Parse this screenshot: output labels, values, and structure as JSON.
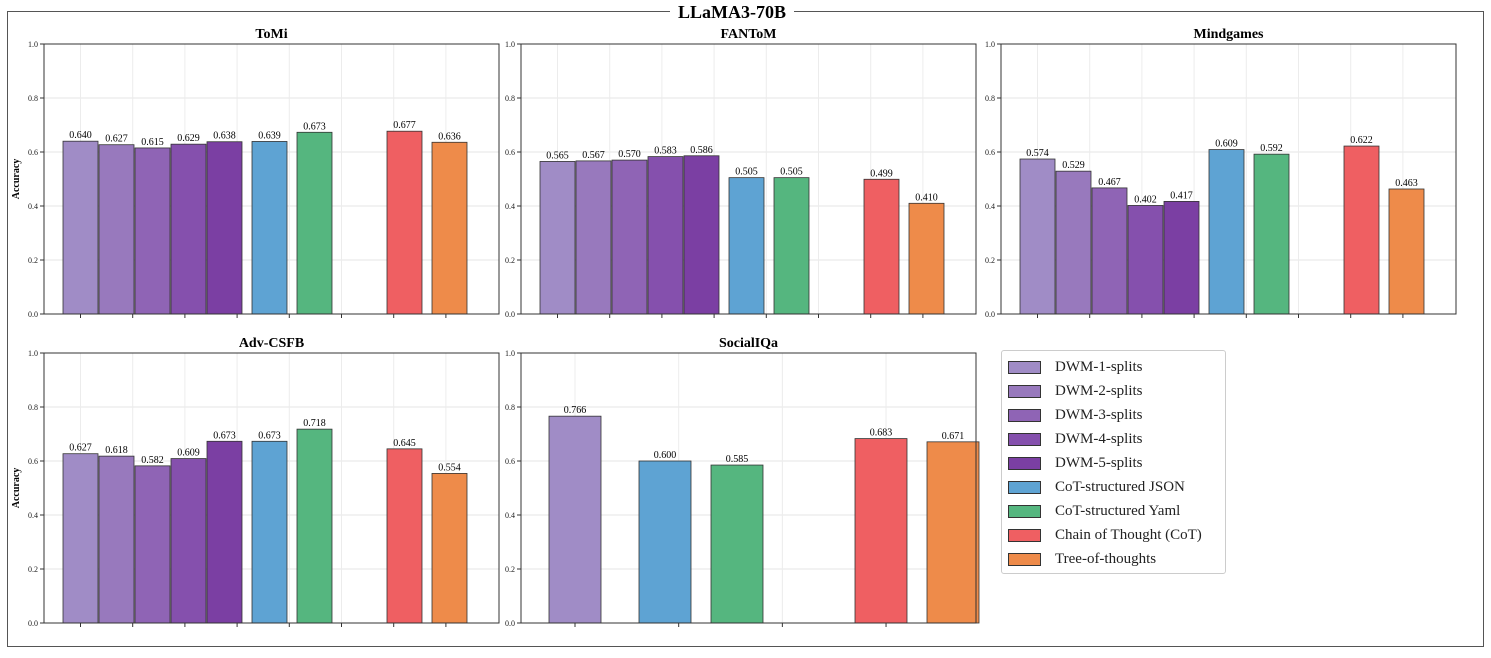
{
  "main_title": "LLaMA3-70B",
  "colors": {
    "DWM-1-splits": "#a08cc6",
    "DWM-2-splits": "#9879bd",
    "DWM-3-splits": "#8f64b5",
    "DWM-4-splits": "#8550ad",
    "DWM-5-splits": "#7b3fa3",
    "CoT-structured JSON": "#5ea3d3",
    "CoT-structured Yaml": "#55b67f",
    "Chain of Thought (CoT)": "#ef5f62",
    "Tree-of-thoughts": "#ee8b4a"
  },
  "legend": {
    "items": [
      "DWM-1-splits",
      "DWM-2-splits",
      "DWM-3-splits",
      "DWM-4-splits",
      "DWM-5-splits",
      "CoT-structured JSON",
      "CoT-structured Yaml",
      "Chain of Thought (CoT)",
      "Tree-of-thoughts"
    ]
  },
  "chart_data": [
    {
      "type": "bar",
      "title": "ToMi",
      "ylabel": "Accuracy",
      "xlabel": "",
      "ylim": [
        0,
        1
      ],
      "yticks": [
        "0.0",
        "0.2",
        "0.4",
        "0.6",
        "0.8",
        "1.0"
      ],
      "grid": true,
      "series": [
        {
          "name": "DWM-1-splits",
          "value": 0.64,
          "label": "0.640"
        },
        {
          "name": "DWM-2-splits",
          "value": 0.627,
          "label": "0.627"
        },
        {
          "name": "DWM-3-splits",
          "value": 0.615,
          "label": "0.615"
        },
        {
          "name": "DWM-4-splits",
          "value": 0.629,
          "label": "0.629"
        },
        {
          "name": "DWM-5-splits",
          "value": 0.638,
          "label": "0.638"
        },
        {
          "name": "CoT-structured JSON",
          "value": 0.639,
          "label": "0.639"
        },
        {
          "name": "CoT-structured Yaml",
          "value": 0.673,
          "label": "0.673"
        },
        {
          "name": "Chain of Thought (CoT)",
          "value": 0.677,
          "label": "0.677"
        },
        {
          "name": "Tree-of-thoughts",
          "value": 0.636,
          "label": "0.636"
        }
      ]
    },
    {
      "type": "bar",
      "title": "FANToM",
      "ylabel": "",
      "xlabel": "",
      "ylim": [
        0,
        1
      ],
      "yticks": [
        "0.0",
        "0.2",
        "0.4",
        "0.6",
        "0.8",
        "1.0"
      ],
      "grid": true,
      "series": [
        {
          "name": "DWM-1-splits",
          "value": 0.565,
          "label": "0.565"
        },
        {
          "name": "DWM-2-splits",
          "value": 0.567,
          "label": "0.567"
        },
        {
          "name": "DWM-3-splits",
          "value": 0.57,
          "label": "0.570"
        },
        {
          "name": "DWM-4-splits",
          "value": 0.583,
          "label": "0.583"
        },
        {
          "name": "DWM-5-splits",
          "value": 0.586,
          "label": "0.586"
        },
        {
          "name": "CoT-structured JSON",
          "value": 0.505,
          "label": "0.505"
        },
        {
          "name": "CoT-structured Yaml",
          "value": 0.505,
          "label": "0.505"
        },
        {
          "name": "Chain of Thought (CoT)",
          "value": 0.499,
          "label": "0.499"
        },
        {
          "name": "Tree-of-thoughts",
          "value": 0.41,
          "label": "0.410"
        }
      ]
    },
    {
      "type": "bar",
      "title": "Mindgames",
      "ylabel": "",
      "xlabel": "",
      "ylim": [
        0,
        1
      ],
      "yticks": [
        "0.0",
        "0.2",
        "0.4",
        "0.6",
        "0.8",
        "1.0"
      ],
      "grid": true,
      "series": [
        {
          "name": "DWM-1-splits",
          "value": 0.574,
          "label": "0.574"
        },
        {
          "name": "DWM-2-splits",
          "value": 0.529,
          "label": "0.529"
        },
        {
          "name": "DWM-3-splits",
          "value": 0.467,
          "label": "0.467"
        },
        {
          "name": "DWM-4-splits",
          "value": 0.402,
          "label": "0.402"
        },
        {
          "name": "DWM-5-splits",
          "value": 0.417,
          "label": "0.417"
        },
        {
          "name": "CoT-structured JSON",
          "value": 0.609,
          "label": "0.609"
        },
        {
          "name": "CoT-structured Yaml",
          "value": 0.592,
          "label": "0.592"
        },
        {
          "name": "Chain of Thought (CoT)",
          "value": 0.622,
          "label": "0.622"
        },
        {
          "name": "Tree-of-thoughts",
          "value": 0.463,
          "label": "0.463"
        }
      ]
    },
    {
      "type": "bar",
      "title": "Adv-CSFB",
      "ylabel": "Accuracy",
      "xlabel": "",
      "ylim": [
        0,
        1
      ],
      "yticks": [
        "0.0",
        "0.2",
        "0.4",
        "0.6",
        "0.8",
        "1.0"
      ],
      "grid": true,
      "series": [
        {
          "name": "DWM-1-splits",
          "value": 0.627,
          "label": "0.627"
        },
        {
          "name": "DWM-2-splits",
          "value": 0.618,
          "label": "0.618"
        },
        {
          "name": "DWM-3-splits",
          "value": 0.582,
          "label": "0.582"
        },
        {
          "name": "DWM-4-splits",
          "value": 0.609,
          "label": "0.609"
        },
        {
          "name": "DWM-5-splits",
          "value": 0.673,
          "label": "0.673"
        },
        {
          "name": "CoT-structured JSON",
          "value": 0.673,
          "label": "0.673"
        },
        {
          "name": "CoT-structured Yaml",
          "value": 0.718,
          "label": "0.718"
        },
        {
          "name": "Chain of Thought (CoT)",
          "value": 0.645,
          "label": "0.645"
        },
        {
          "name": "Tree-of-thoughts",
          "value": 0.554,
          "label": "0.554"
        }
      ]
    },
    {
      "type": "bar",
      "title": "SocialIQa",
      "ylabel": "",
      "xlabel": "",
      "ylim": [
        0,
        1
      ],
      "yticks": [
        "0.0",
        "0.2",
        "0.4",
        "0.6",
        "0.8",
        "1.0"
      ],
      "grid": true,
      "series": [
        {
          "name": "DWM-1-splits",
          "value": 0.766,
          "label": "0.766"
        },
        {
          "name": "CoT-structured JSON",
          "value": 0.6,
          "label": "0.600"
        },
        {
          "name": "CoT-structured Yaml",
          "value": 0.585,
          "label": "0.585"
        },
        {
          "name": "Chain of Thought (CoT)",
          "value": 0.683,
          "label": "0.683"
        },
        {
          "name": "Tree-of-thoughts",
          "value": 0.671,
          "label": "0.671"
        }
      ]
    }
  ]
}
